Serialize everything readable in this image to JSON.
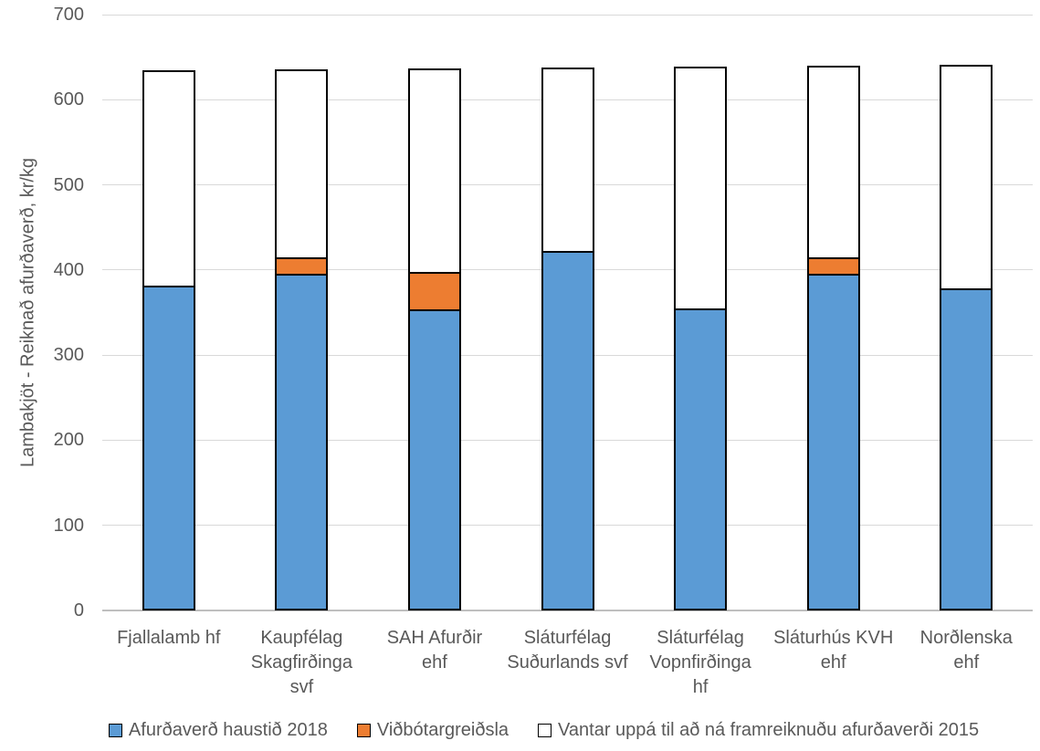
{
  "chart_data": {
    "type": "bar",
    "stacked": true,
    "title": "",
    "ylabel": "Lambakjöt - Reiknað afurðaverð, kr/kg",
    "xlabel": "",
    "ylim": [
      0,
      700
    ],
    "yticks": [
      0,
      100,
      200,
      300,
      400,
      500,
      600,
      700
    ],
    "grid": true,
    "legend_position": "bottom",
    "categories": [
      "Fjallalamb hf",
      "Kaupfélag Skagfirðinga svf",
      "SAH Afurðir ehf",
      "Sláturfélag Suðurlands svf",
      "Sláturfélag Vopnfirðinga hf",
      "Sláturhús KVH ehf",
      "Norðlenska ehf"
    ],
    "categories_lines": [
      [
        "Fjallalamb hf"
      ],
      [
        "Kaupfélag",
        "Skagfirðinga",
        "svf"
      ],
      [
        "SAH Afurðir",
        "ehf"
      ],
      [
        "Sláturfélag",
        "Suðurlands svf"
      ],
      [
        "Sláturfélag",
        "Vopnfirðinga",
        "hf"
      ],
      [
        "Sláturhús KVH",
        "ehf"
      ],
      [
        "Norðlenska",
        "ehf"
      ]
    ],
    "series": [
      {
        "name": "Afurðaverð haustið 2018",
        "color": "#5B9BD5",
        "border_color": "#000000",
        "values": [
          380,
          393,
          352,
          420,
          353,
          393,
          376
        ]
      },
      {
        "name": "Viðbótargreiðsla",
        "color": "#ED7D31",
        "border_color": "#000000",
        "values": [
          0,
          20,
          44,
          0,
          0,
          20,
          0
        ]
      },
      {
        "name": "Vantar uppá til að ná framreiknuðu afurðaverði 2015",
        "color": "#FFFFFF",
        "border_color": "#000000",
        "values": [
          255,
          223,
          241,
          218,
          286,
          227,
          265
        ]
      }
    ],
    "stack_totals": [
      635,
      636,
      637,
      638,
      639,
      640,
      641
    ]
  },
  "colors": {
    "axis_text": "#595959",
    "gridline": "#D9D9D9",
    "baseline": "#BFBFBF",
    "background": "#FFFFFF"
  }
}
